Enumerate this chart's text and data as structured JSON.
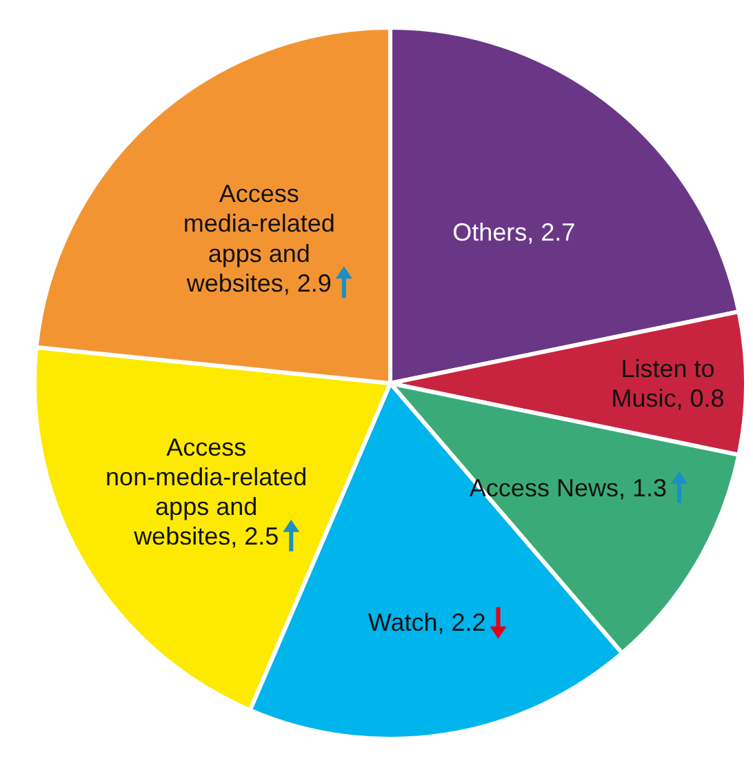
{
  "chart_data": {
    "type": "pie",
    "categories": [
      "Others",
      "Listen to Music",
      "Access News",
      "Watch",
      "Access non-media-related apps and websites",
      "Access media-related apps and websites"
    ],
    "values": [
      2.7,
      0.8,
      1.3,
      2.2,
      2.5,
      2.9
    ],
    "colors": [
      "#6a3787",
      "#c9243f",
      "#3aab78",
      "#00b4ec",
      "#fdea00",
      "#f39433"
    ],
    "value_labels": [
      ", 2.7",
      ", 0.8",
      ", 1.3",
      ", 2.2",
      ", 2.5",
      ", 2.9"
    ],
    "legend": false
  }
}
